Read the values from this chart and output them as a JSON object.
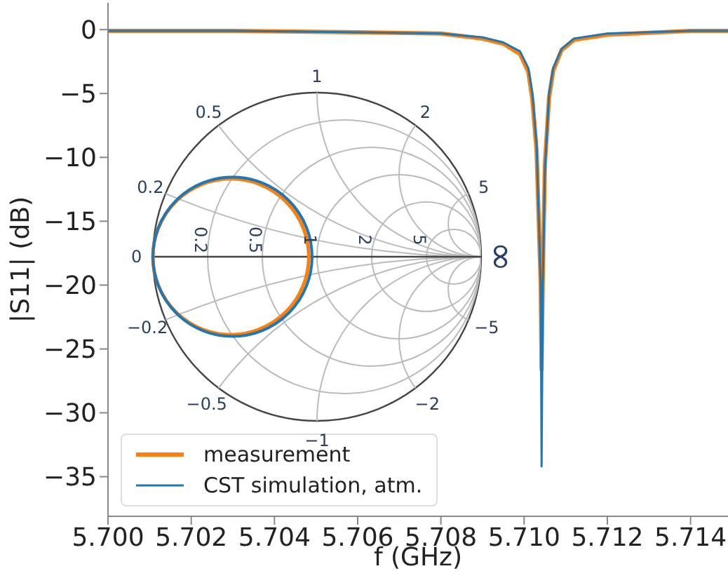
{
  "chart_data": [
    {
      "type": "line",
      "xlabel": "f (GHz)",
      "ylabel": "|S11| (dB)",
      "xlim": [
        5.7,
        5.7149
      ],
      "ylim": [
        -38.1,
        2.1
      ],
      "xticks": [
        {
          "value": 5.7,
          "label": "5.700"
        },
        {
          "value": 5.702,
          "label": "5.702"
        },
        {
          "value": 5.704,
          "label": "5.704"
        },
        {
          "value": 5.706,
          "label": "5.706"
        },
        {
          "value": 5.708,
          "label": "5.708"
        },
        {
          "value": 5.71,
          "label": "5.710"
        },
        {
          "value": 5.712,
          "label": "5.712"
        },
        {
          "value": 5.714,
          "label": "5.714"
        }
      ],
      "yticks": [
        -35,
        -30,
        -25,
        -20,
        -15,
        -10,
        -5,
        0
      ],
      "grid": false,
      "legend": "bottom left",
      "marker": "none",
      "line_style": "solid",
      "series": [
        {
          "name": "measurement",
          "color": "#ff7f0e",
          "x": [
            5.7,
            5.703,
            5.706,
            5.708,
            5.709,
            5.7095,
            5.7099,
            5.7101,
            5.7102,
            5.7103,
            5.7104,
            5.71042,
            5.71045,
            5.7105,
            5.7106,
            5.7107,
            5.7109,
            5.7112,
            5.712,
            5.714,
            5.7149
          ],
          "values": [
            -0.1,
            -0.1,
            -0.2,
            -0.3,
            -0.7,
            -1.1,
            -1.9,
            -3.3,
            -5.5,
            -9.5,
            -20,
            -26.6,
            -19,
            -10.5,
            -5.3,
            -3.2,
            -1.6,
            -0.8,
            -0.4,
            -0.1,
            -0.1
          ]
        },
        {
          "name": "CST simulation, atm.",
          "color": "#1f77b4",
          "x": [
            5.7,
            5.703,
            5.706,
            5.708,
            5.709,
            5.7095,
            5.7099,
            5.7101,
            5.7102,
            5.7103,
            5.7104,
            5.71042,
            5.71045,
            5.7105,
            5.7106,
            5.7107,
            5.7109,
            5.7112,
            5.712,
            5.714,
            5.7149
          ],
          "values": [
            -0.1,
            -0.1,
            -0.2,
            -0.3,
            -0.6,
            -1.0,
            -1.7,
            -3.0,
            -5,
            -9,
            -20,
            -34.2,
            -20,
            -11,
            -5,
            -3,
            -1.5,
            -0.7,
            -0.3,
            -0.1,
            -0.1
          ]
        }
      ]
    },
    {
      "type": "other",
      "annotations": [
        "1",
        "0.5",
        "2",
        "0.2",
        "5",
        "0",
        "∞",
        "−0.2",
        "−5",
        "−0.5",
        "−2",
        "−1",
        "0.2",
        "0.5",
        "1",
        "2",
        "5"
      ]
    }
  ]
}
